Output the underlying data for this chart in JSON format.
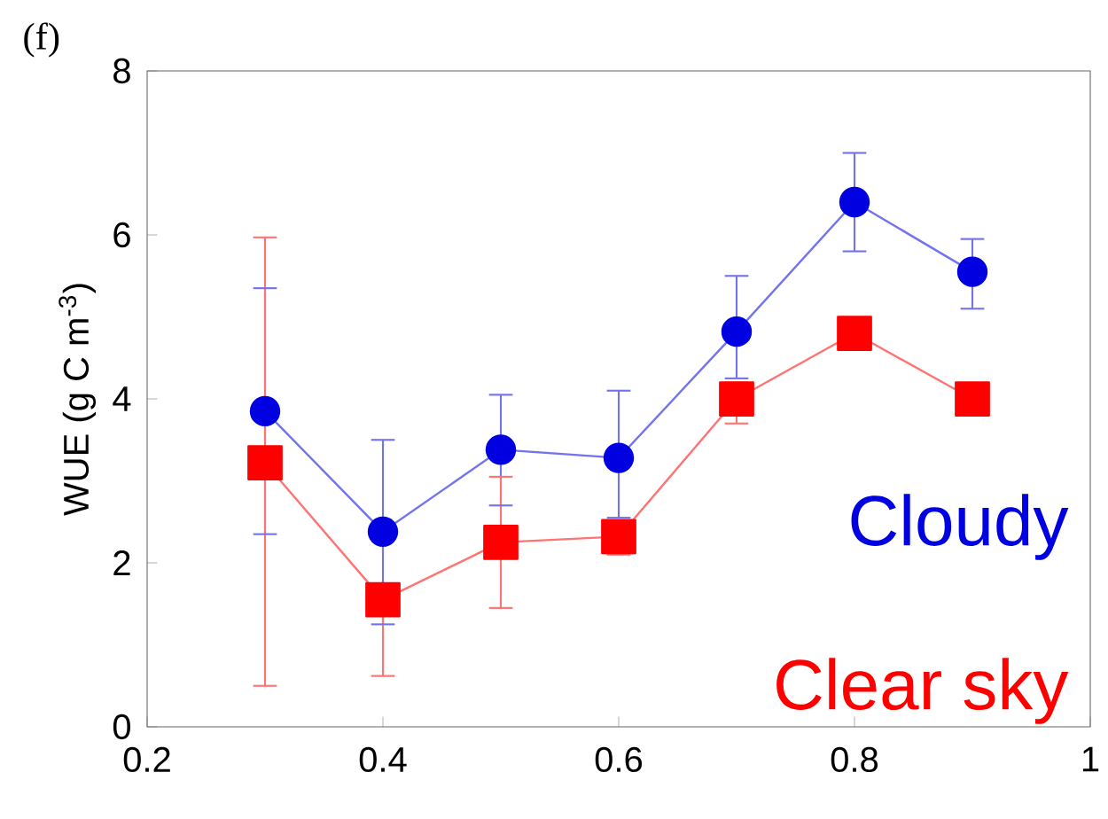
{
  "chart_data": {
    "type": "line",
    "ylabel": "WUE (g C m$^{-3}$)",
    "annotations": [
      "(f)"
    ],
    "x": [
      0.3,
      0.4,
      0.5,
      0.6,
      0.7,
      0.8,
      0.9
    ],
    "series": [
      {
        "name": "Cloudy",
        "color": "#0000e0",
        "marker": "circle",
        "values": [
          3.85,
          2.38,
          3.38,
          3.28,
          4.82,
          6.4,
          5.55
        ],
        "errors": [
          [
            2.35,
            5.35
          ],
          [
            1.25,
            3.5
          ],
          [
            2.7,
            4.05
          ],
          [
            2.55,
            4.1
          ],
          [
            4.25,
            5.5
          ],
          [
            5.8,
            7.0
          ],
          [
            5.1,
            5.95
          ]
        ]
      },
      {
        "name": "Clear sky",
        "color": "#ff0000",
        "marker": "square",
        "values": [
          3.22,
          1.55,
          2.25,
          2.32,
          4.0,
          4.8,
          4.0
        ],
        "errors": [
          [
            0.5,
            5.97
          ],
          [
            0.62,
            1.55
          ],
          [
            1.45,
            3.05
          ],
          [
            2.1,
            2.5
          ],
          [
            3.7,
            4.2
          ],
          null,
          null
        ]
      }
    ],
    "xlim": [
      0.2,
      1
    ],
    "ylim": [
      0,
      8
    ],
    "xticks": [
      0.2,
      0.4,
      0.6,
      0.8,
      1
    ],
    "yticks": [
      0,
      2,
      4,
      6,
      8
    ],
    "grid": false,
    "legend": "bottom right"
  }
}
